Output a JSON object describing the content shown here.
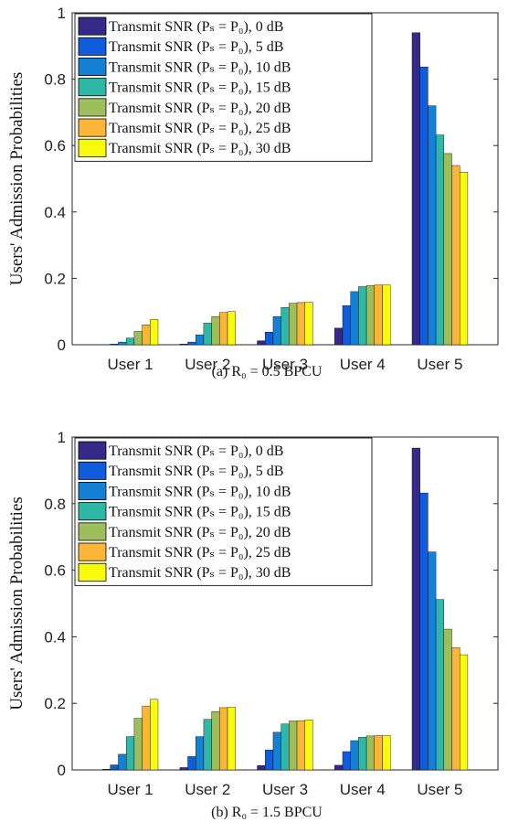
{
  "chart_data": [
    {
      "type": "bar",
      "title": "",
      "caption": "(a) R₀ = 0.5 BPCU",
      "ylabel": "Users' Admission Probabilities",
      "xlabel": "",
      "ylim": [
        0,
        1
      ],
      "yticks": [
        "0",
        "0.2",
        "0.4",
        "0.6",
        "0.8",
        "1"
      ],
      "categories": [
        "User 1",
        "User 2",
        "User 3",
        "User 4",
        "User 5"
      ],
      "legend_position": "top-left",
      "series": [
        {
          "name": "Transmit SNR (Pₛ = P₀), 0 dB",
          "color": "#352a87",
          "values": [
            0.0,
            0.002,
            0.012,
            0.05,
            0.94
          ]
        },
        {
          "name": "Transmit SNR (Pₛ = P₀), 5 dB",
          "color": "#0f5cdd",
          "values": [
            0.002,
            0.008,
            0.038,
            0.118,
            0.837
          ]
        },
        {
          "name": "Transmit SNR (Pₛ = P₀), 10 dB",
          "color": "#1481d6",
          "values": [
            0.008,
            0.03,
            0.085,
            0.16,
            0.72
          ]
        },
        {
          "name": "Transmit SNR (Pₛ = P₀), 15 dB",
          "color": "#2fb8a6",
          "values": [
            0.02,
            0.065,
            0.112,
            0.175,
            0.632
          ]
        },
        {
          "name": "Transmit SNR (Pₛ = P₀), 20 dB",
          "color": "#9cbf5c",
          "values": [
            0.04,
            0.085,
            0.125,
            0.178,
            0.576
          ]
        },
        {
          "name": "Transmit SNR (Pₛ = P₀), 25 dB",
          "color": "#fbb63a",
          "values": [
            0.06,
            0.097,
            0.127,
            0.18,
            0.54
          ]
        },
        {
          "name": "Transmit SNR (Pₛ = P₀), 30 dB",
          "color": "#f9fb0e",
          "values": [
            0.076,
            0.1,
            0.128,
            0.18,
            0.52
          ]
        }
      ]
    },
    {
      "type": "bar",
      "title": "",
      "caption": "(b) R₀ = 1.5 BPCU",
      "ylabel": "Users' Admission Probabilities",
      "xlabel": "",
      "ylim": [
        0,
        1
      ],
      "yticks": [
        "0",
        "0.2",
        "0.4",
        "0.6",
        "0.8",
        "1"
      ],
      "categories": [
        "User 1",
        "User 2",
        "User 3",
        "User 4",
        "User 5"
      ],
      "legend_position": "top-left",
      "series": [
        {
          "name": "Transmit SNR (Pₛ = P₀), 0 dB",
          "color": "#352a87",
          "values": [
            0.002,
            0.007,
            0.013,
            0.014,
            0.967
          ]
        },
        {
          "name": "Transmit SNR (Pₛ = P₀), 5 dB",
          "color": "#0f5cdd",
          "values": [
            0.015,
            0.04,
            0.06,
            0.055,
            0.832
          ]
        },
        {
          "name": "Transmit SNR (Pₛ = P₀), 10 dB",
          "color": "#1481d6",
          "values": [
            0.047,
            0.1,
            0.113,
            0.088,
            0.655
          ]
        },
        {
          "name": "Transmit SNR (Pₛ = P₀), 15 dB",
          "color": "#2fb8a6",
          "values": [
            0.1,
            0.152,
            0.138,
            0.098,
            0.512
          ]
        },
        {
          "name": "Transmit SNR (Pₛ = P₀), 20 dB",
          "color": "#9cbf5c",
          "values": [
            0.155,
            0.175,
            0.147,
            0.102,
            0.423
          ]
        },
        {
          "name": "Transmit SNR (Pₛ = P₀), 25 dB",
          "color": "#fbb63a",
          "values": [
            0.192,
            0.187,
            0.148,
            0.103,
            0.367
          ]
        },
        {
          "name": "Transmit SNR (Pₛ = P₀), 30 dB",
          "color": "#f9fb0e",
          "values": [
            0.212,
            0.188,
            0.15,
            0.103,
            0.346
          ]
        }
      ]
    }
  ]
}
